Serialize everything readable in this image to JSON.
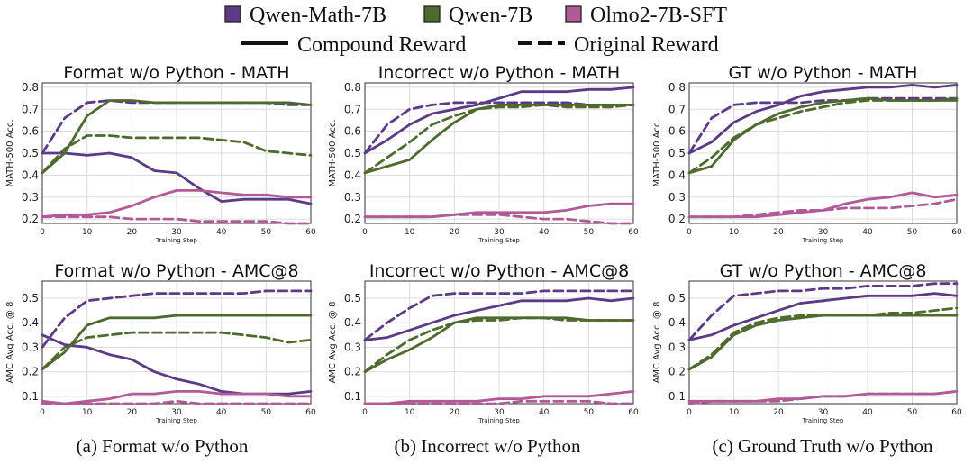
{
  "legend": {
    "models": [
      {
        "name": "Qwen-Math-7B",
        "color": "#5b3a86"
      },
      {
        "name": "Qwen-7B",
        "color": "#4f6a2e"
      },
      {
        "name": "Olmo2-7B-SFT",
        "color": "#b05a96"
      }
    ],
    "styles": [
      {
        "name": "Compound Reward",
        "dash": "solid"
      },
      {
        "name": "Original Reward",
        "dash": "dashed"
      }
    ]
  },
  "captions": [
    "(a) Format w/o Python",
    "(b) Incorrect w/o Python",
    "(c) Ground Truth w/o Python"
  ],
  "chart_data": [
    {
      "type": "line",
      "title": "Format w/o Python - MATH",
      "xlabel": "Training Step",
      "ylabel": "MATH-500 Acc.",
      "xlim": [
        0,
        60
      ],
      "ylim": [
        0.18,
        0.82
      ],
      "xticks": [
        0,
        10,
        20,
        30,
        40,
        50,
        60
      ],
      "yticks": [
        0.2,
        0.3,
        0.4,
        0.5,
        0.6,
        0.7,
        0.8
      ],
      "grid": true,
      "x": [
        0,
        5,
        10,
        15,
        20,
        25,
        30,
        35,
        40,
        45,
        50,
        55,
        60
      ],
      "series": [
        {
          "model": "Qwen-Math-7B",
          "reward": "Compound Reward",
          "values": [
            0.5,
            0.5,
            0.49,
            0.5,
            0.48,
            0.42,
            0.41,
            0.34,
            0.28,
            0.29,
            0.29,
            0.29,
            0.27
          ]
        },
        {
          "model": "Qwen-Math-7B",
          "reward": "Original Reward",
          "values": [
            0.5,
            0.66,
            0.73,
            0.74,
            0.73,
            0.73,
            0.73,
            0.73,
            0.73,
            0.73,
            0.73,
            0.72,
            0.72
          ]
        },
        {
          "model": "Qwen-7B",
          "reward": "Compound Reward",
          "values": [
            0.41,
            0.5,
            0.67,
            0.74,
            0.74,
            0.73,
            0.73,
            0.73,
            0.73,
            0.73,
            0.73,
            0.73,
            0.72
          ]
        },
        {
          "model": "Qwen-7B",
          "reward": "Original Reward",
          "values": [
            0.41,
            0.52,
            0.58,
            0.58,
            0.57,
            0.57,
            0.57,
            0.57,
            0.56,
            0.55,
            0.51,
            0.5,
            0.49
          ]
        },
        {
          "model": "Olmo2-7B-SFT",
          "reward": "Compound Reward",
          "values": [
            0.21,
            0.22,
            0.22,
            0.23,
            0.26,
            0.3,
            0.33,
            0.33,
            0.32,
            0.31,
            0.31,
            0.3,
            0.3
          ]
        },
        {
          "model": "Olmo2-7B-SFT",
          "reward": "Original Reward",
          "values": [
            0.21,
            0.21,
            0.21,
            0.21,
            0.2,
            0.2,
            0.2,
            0.19,
            0.19,
            0.19,
            0.19,
            0.18,
            0.18
          ]
        }
      ]
    },
    {
      "type": "line",
      "title": "Incorrect w/o Python - MATH",
      "xlabel": "Training Step",
      "ylabel": "MATH-500 Acc.",
      "xlim": [
        0,
        60
      ],
      "ylim": [
        0.18,
        0.82
      ],
      "xticks": [
        0,
        10,
        20,
        30,
        40,
        50,
        60
      ],
      "yticks": [
        0.2,
        0.3,
        0.4,
        0.5,
        0.6,
        0.7,
        0.8
      ],
      "grid": true,
      "x": [
        0,
        5,
        10,
        15,
        20,
        25,
        30,
        35,
        40,
        45,
        50,
        55,
        60
      ],
      "series": [
        {
          "model": "Qwen-Math-7B",
          "reward": "Compound Reward",
          "values": [
            0.5,
            0.56,
            0.63,
            0.68,
            0.7,
            0.72,
            0.75,
            0.78,
            0.78,
            0.78,
            0.79,
            0.79,
            0.8
          ]
        },
        {
          "model": "Qwen-Math-7B",
          "reward": "Original Reward",
          "values": [
            0.5,
            0.63,
            0.7,
            0.72,
            0.73,
            0.73,
            0.73,
            0.73,
            0.73,
            0.73,
            0.72,
            0.72,
            0.72
          ]
        },
        {
          "model": "Qwen-7B",
          "reward": "Compound Reward",
          "values": [
            0.41,
            0.44,
            0.47,
            0.56,
            0.64,
            0.7,
            0.72,
            0.72,
            0.72,
            0.72,
            0.72,
            0.72,
            0.72
          ]
        },
        {
          "model": "Qwen-7B",
          "reward": "Original Reward",
          "values": [
            0.41,
            0.48,
            0.55,
            0.63,
            0.67,
            0.7,
            0.71,
            0.71,
            0.72,
            0.71,
            0.71,
            0.71,
            0.72
          ]
        },
        {
          "model": "Olmo2-7B-SFT",
          "reward": "Compound Reward",
          "values": [
            0.21,
            0.21,
            0.21,
            0.21,
            0.22,
            0.23,
            0.23,
            0.23,
            0.23,
            0.24,
            0.26,
            0.27,
            0.27
          ]
        },
        {
          "model": "Olmo2-7B-SFT",
          "reward": "Original Reward",
          "values": [
            0.21,
            0.21,
            0.21,
            0.21,
            0.22,
            0.22,
            0.22,
            0.21,
            0.2,
            0.2,
            0.19,
            0.18,
            0.18
          ]
        }
      ]
    },
    {
      "type": "line",
      "title": "GT w/o Python - MATH",
      "xlabel": "Training Step",
      "ylabel": "MATH-500 Acc.",
      "xlim": [
        0,
        60
      ],
      "ylim": [
        0.18,
        0.82
      ],
      "xticks": [
        0,
        10,
        20,
        30,
        40,
        50,
        60
      ],
      "yticks": [
        0.2,
        0.3,
        0.4,
        0.5,
        0.6,
        0.7,
        0.8
      ],
      "grid": true,
      "x": [
        0,
        5,
        10,
        15,
        20,
        25,
        30,
        35,
        40,
        45,
        50,
        55,
        60
      ],
      "series": [
        {
          "model": "Qwen-Math-7B",
          "reward": "Compound Reward",
          "values": [
            0.5,
            0.55,
            0.64,
            0.69,
            0.72,
            0.76,
            0.78,
            0.79,
            0.8,
            0.8,
            0.81,
            0.8,
            0.81
          ]
        },
        {
          "model": "Qwen-Math-7B",
          "reward": "Original Reward",
          "values": [
            0.5,
            0.66,
            0.72,
            0.73,
            0.73,
            0.73,
            0.74,
            0.74,
            0.75,
            0.75,
            0.75,
            0.75,
            0.75
          ]
        },
        {
          "model": "Qwen-7B",
          "reward": "Compound Reward",
          "values": [
            0.41,
            0.44,
            0.56,
            0.63,
            0.68,
            0.71,
            0.73,
            0.74,
            0.75,
            0.74,
            0.74,
            0.74,
            0.74
          ]
        },
        {
          "model": "Qwen-7B",
          "reward": "Original Reward",
          "values": [
            0.41,
            0.48,
            0.57,
            0.63,
            0.66,
            0.69,
            0.71,
            0.73,
            0.74,
            0.74,
            0.74,
            0.74,
            0.75
          ]
        },
        {
          "model": "Olmo2-7B-SFT",
          "reward": "Compound Reward",
          "values": [
            0.21,
            0.21,
            0.21,
            0.21,
            0.22,
            0.23,
            0.24,
            0.27,
            0.29,
            0.3,
            0.32,
            0.3,
            0.31
          ]
        },
        {
          "model": "Olmo2-7B-SFT",
          "reward": "Original Reward",
          "values": [
            0.21,
            0.21,
            0.21,
            0.22,
            0.23,
            0.24,
            0.24,
            0.25,
            0.25,
            0.25,
            0.26,
            0.27,
            0.29
          ]
        }
      ]
    },
    {
      "type": "line",
      "title": "Format w/o Python - AMC@8",
      "xlabel": "Training Step",
      "ylabel": "AMC Avg Acc. @ 8",
      "xlim": [
        0,
        60
      ],
      "ylim": [
        0.07,
        0.57
      ],
      "xticks": [
        0,
        10,
        20,
        30,
        40,
        50,
        60
      ],
      "yticks": [
        0.1,
        0.2,
        0.3,
        0.4,
        0.5
      ],
      "grid": true,
      "x": [
        0,
        5,
        10,
        15,
        20,
        25,
        30,
        35,
        40,
        45,
        50,
        55,
        60
      ],
      "series": [
        {
          "model": "Qwen-Math-7B",
          "reward": "Compound Reward",
          "values": [
            0.35,
            0.31,
            0.3,
            0.27,
            0.25,
            0.2,
            0.17,
            0.15,
            0.12,
            0.11,
            0.11,
            0.11,
            0.12
          ]
        },
        {
          "model": "Qwen-Math-7B",
          "reward": "Original Reward",
          "values": [
            0.3,
            0.42,
            0.49,
            0.5,
            0.51,
            0.52,
            0.52,
            0.52,
            0.52,
            0.52,
            0.53,
            0.53,
            0.53
          ]
        },
        {
          "model": "Qwen-7B",
          "reward": "Compound Reward",
          "values": [
            0.21,
            0.28,
            0.39,
            0.42,
            0.42,
            0.42,
            0.43,
            0.43,
            0.43,
            0.43,
            0.43,
            0.43,
            0.43
          ]
        },
        {
          "model": "Qwen-7B",
          "reward": "Original Reward",
          "values": [
            0.21,
            0.3,
            0.34,
            0.35,
            0.36,
            0.36,
            0.36,
            0.36,
            0.36,
            0.35,
            0.34,
            0.32,
            0.33
          ]
        },
        {
          "model": "Olmo2-7B-SFT",
          "reward": "Compound Reward",
          "values": [
            0.08,
            0.07,
            0.08,
            0.09,
            0.11,
            0.11,
            0.12,
            0.12,
            0.11,
            0.11,
            0.11,
            0.1,
            0.1
          ]
        },
        {
          "model": "Olmo2-7B-SFT",
          "reward": "Original Reward",
          "values": [
            0.07,
            0.07,
            0.07,
            0.07,
            0.07,
            0.07,
            0.08,
            0.07,
            0.07,
            0.07,
            0.07,
            0.07,
            0.07
          ]
        }
      ]
    },
    {
      "type": "line",
      "title": "Incorrect w/o Python - AMC@8",
      "xlabel": "Training Step",
      "ylabel": "AMC Avg Acc. @ 8",
      "xlim": [
        0,
        60
      ],
      "ylim": [
        0.07,
        0.57
      ],
      "xticks": [
        0,
        10,
        20,
        30,
        40,
        50,
        60
      ],
      "yticks": [
        0.1,
        0.2,
        0.3,
        0.4,
        0.5
      ],
      "grid": true,
      "x": [
        0,
        5,
        10,
        15,
        20,
        25,
        30,
        35,
        40,
        45,
        50,
        55,
        60
      ],
      "series": [
        {
          "model": "Qwen-Math-7B",
          "reward": "Compound Reward",
          "values": [
            0.33,
            0.34,
            0.37,
            0.4,
            0.43,
            0.45,
            0.47,
            0.49,
            0.49,
            0.49,
            0.5,
            0.49,
            0.5
          ]
        },
        {
          "model": "Qwen-Math-7B",
          "reward": "Original Reward",
          "values": [
            0.33,
            0.4,
            0.46,
            0.51,
            0.52,
            0.52,
            0.52,
            0.52,
            0.53,
            0.53,
            0.53,
            0.53,
            0.53
          ]
        },
        {
          "model": "Qwen-7B",
          "reward": "Compound Reward",
          "values": [
            0.2,
            0.25,
            0.29,
            0.34,
            0.4,
            0.42,
            0.42,
            0.42,
            0.42,
            0.42,
            0.41,
            0.41,
            0.41
          ]
        },
        {
          "model": "Qwen-7B",
          "reward": "Original Reward",
          "values": [
            0.2,
            0.27,
            0.33,
            0.37,
            0.4,
            0.41,
            0.41,
            0.42,
            0.42,
            0.41,
            0.41,
            0.41,
            0.41
          ]
        },
        {
          "model": "Olmo2-7B-SFT",
          "reward": "Compound Reward",
          "values": [
            0.07,
            0.07,
            0.08,
            0.08,
            0.08,
            0.08,
            0.09,
            0.09,
            0.1,
            0.1,
            0.1,
            0.11,
            0.12
          ]
        },
        {
          "model": "Olmo2-7B-SFT",
          "reward": "Original Reward",
          "values": [
            0.07,
            0.07,
            0.07,
            0.07,
            0.07,
            0.07,
            0.07,
            0.08,
            0.08,
            0.08,
            0.08,
            0.07,
            0.07
          ]
        }
      ]
    },
    {
      "type": "line",
      "title": "GT w/o Python - AMC@8",
      "xlabel": "Training Step",
      "ylabel": "AMC Avg Acc. @ 8",
      "xlim": [
        0,
        60
      ],
      "ylim": [
        0.07,
        0.57
      ],
      "xticks": [
        0,
        10,
        20,
        30,
        40,
        50,
        60
      ],
      "yticks": [
        0.1,
        0.2,
        0.3,
        0.4,
        0.5
      ],
      "grid": true,
      "x": [
        0,
        5,
        10,
        15,
        20,
        25,
        30,
        35,
        40,
        45,
        50,
        55,
        60
      ],
      "series": [
        {
          "model": "Qwen-Math-7B",
          "reward": "Compound Reward",
          "values": [
            0.33,
            0.35,
            0.39,
            0.42,
            0.45,
            0.48,
            0.49,
            0.5,
            0.51,
            0.51,
            0.51,
            0.52,
            0.51
          ]
        },
        {
          "model": "Qwen-Math-7B",
          "reward": "Original Reward",
          "values": [
            0.33,
            0.43,
            0.51,
            0.52,
            0.53,
            0.53,
            0.54,
            0.54,
            0.55,
            0.55,
            0.55,
            0.56,
            0.56
          ]
        },
        {
          "model": "Qwen-7B",
          "reward": "Compound Reward",
          "values": [
            0.21,
            0.26,
            0.35,
            0.39,
            0.41,
            0.42,
            0.43,
            0.43,
            0.43,
            0.43,
            0.43,
            0.43,
            0.43
          ]
        },
        {
          "model": "Qwen-7B",
          "reward": "Original Reward",
          "values": [
            0.21,
            0.27,
            0.36,
            0.4,
            0.42,
            0.43,
            0.43,
            0.43,
            0.43,
            0.44,
            0.44,
            0.45,
            0.46
          ]
        },
        {
          "model": "Olmo2-7B-SFT",
          "reward": "Compound Reward",
          "values": [
            0.08,
            0.08,
            0.08,
            0.08,
            0.09,
            0.09,
            0.1,
            0.1,
            0.11,
            0.11,
            0.11,
            0.11,
            0.12
          ]
        },
        {
          "model": "Olmo2-7B-SFT",
          "reward": "Original Reward",
          "values": [
            0.07,
            0.08,
            0.08,
            0.08,
            0.08,
            0.09,
            0.1,
            0.1,
            0.11,
            0.11,
            0.11,
            0.11,
            0.12
          ]
        }
      ]
    }
  ]
}
